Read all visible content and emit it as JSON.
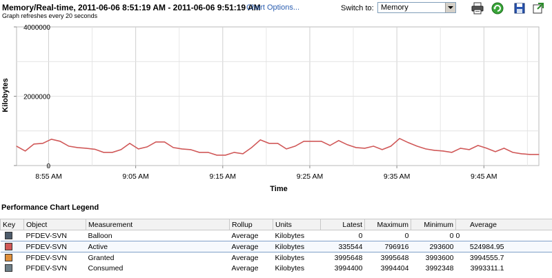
{
  "header": {
    "title": "Memory/Real-time, 2011-06-06 8:51:19 AM - 2011-06-06 9:51:19 AM",
    "chart_options": "Chart Options...",
    "subtitle": "Graph refreshes every 20 seconds",
    "switch_label": "Switch to:",
    "switch_value": "Memory"
  },
  "toolbar": {
    "print_icon": "printer-icon",
    "refresh_icon": "refresh-icon",
    "save_icon": "save-icon",
    "popout_icon": "popout-icon"
  },
  "chart_data": {
    "type": "line",
    "xlabel": "Time",
    "ylabel": "Kilobytes",
    "ylim": [
      0,
      4000000
    ],
    "yticks": [
      "0",
      "2000000",
      "4000000"
    ],
    "xticks": [
      "8:55 AM",
      "9:05 AM",
      "9:15 AM",
      "9:25 AM",
      "9:35 AM",
      "9:45 AM"
    ],
    "grid": true,
    "series": [
      {
        "name": "Active",
        "color": "#d05858",
        "x_minutes": [
          0,
          1,
          2,
          3,
          4,
          5,
          6,
          7,
          8,
          9,
          10,
          11,
          12,
          13,
          14,
          15,
          16,
          17,
          18,
          19,
          20,
          21,
          22,
          23,
          24,
          25,
          26,
          27,
          28,
          29,
          30,
          31,
          32,
          33,
          34,
          35,
          36,
          37,
          38,
          39,
          40,
          41,
          42,
          43,
          44,
          45,
          46,
          47,
          48,
          49,
          50,
          51,
          52,
          53,
          54,
          55,
          56,
          57,
          58,
          59,
          60
        ],
        "values": [
          560000,
          420000,
          620000,
          640000,
          760000,
          700000,
          560000,
          520000,
          500000,
          470000,
          380000,
          380000,
          460000,
          640000,
          480000,
          540000,
          680000,
          680000,
          520000,
          480000,
          460000,
          380000,
          380000,
          300000,
          300000,
          380000,
          340000,
          520000,
          740000,
          640000,
          640000,
          480000,
          560000,
          700000,
          700000,
          700000,
          580000,
          720000,
          600000,
          520000,
          500000,
          560000,
          460000,
          560000,
          780000,
          660000,
          560000,
          480000,
          440000,
          420000,
          380000,
          500000,
          460000,
          580000,
          500000,
          400000,
          500000,
          380000,
          340000,
          320000,
          320000
        ]
      }
    ]
  },
  "legend": {
    "title": "Performance Chart Legend",
    "columns": [
      "Key",
      "Object",
      "Measurement",
      "Rollup",
      "Units",
      "Latest",
      "Maximum",
      "Minimum",
      "Average"
    ],
    "rows": [
      {
        "color": "#4d5b6a",
        "object": "PFDEV-SVN",
        "measurement": "Balloon",
        "rollup": "Average",
        "units": "Kilobytes",
        "latest": "0",
        "maximum": "0",
        "minimum": "0",
        "average": "0"
      },
      {
        "color": "#d05858",
        "object": "PFDEV-SVN",
        "measurement": "Active",
        "rollup": "Average",
        "units": "Kilobytes",
        "latest": "335544",
        "maximum": "796916",
        "minimum": "293600",
        "average": "524984.95"
      },
      {
        "color": "#e0903c",
        "object": "PFDEV-SVN",
        "measurement": "Granted",
        "rollup": "Average",
        "units": "Kilobytes",
        "latest": "3995648",
        "maximum": "3995648",
        "minimum": "3993600",
        "average": "3994555.7"
      },
      {
        "color": "#6e7f88",
        "object": "PFDEV-SVN",
        "measurement": "Consumed",
        "rollup": "Average",
        "units": "Kilobytes",
        "latest": "3994400",
        "maximum": "3994404",
        "minimum": "3992348",
        "average": "3993311.1"
      }
    ]
  }
}
